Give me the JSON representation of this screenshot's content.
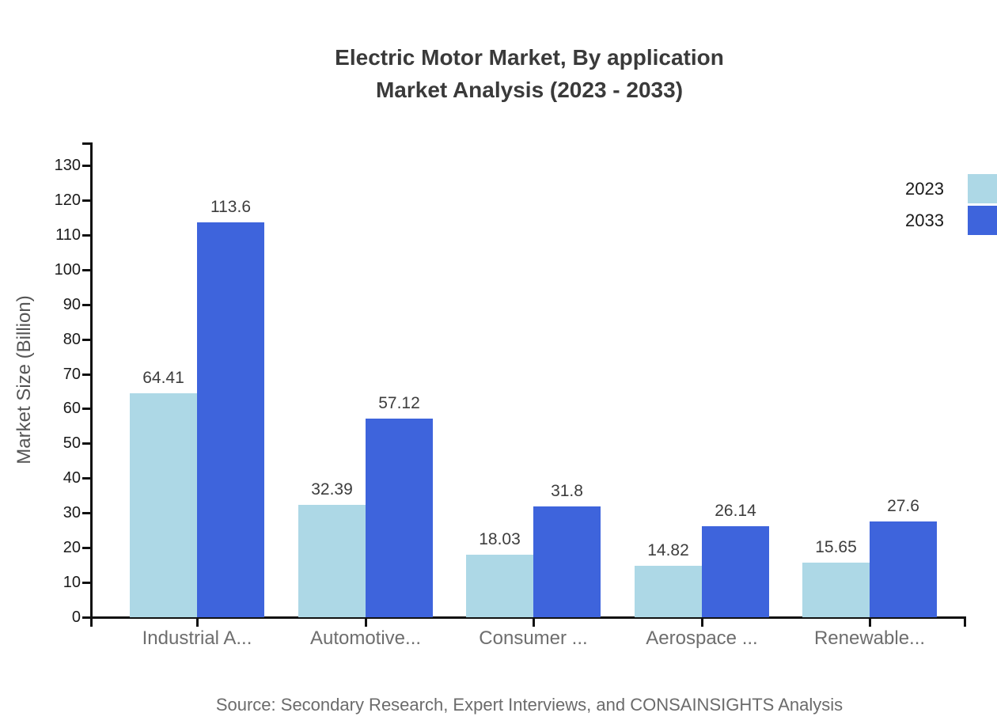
{
  "title": {
    "line1": "Electric Motor Market, By application",
    "line2": "Market Analysis (2023 - 2033)"
  },
  "source": "Source: Secondary Research, Expert Interviews, and CONSAINSIGHTS Analysis",
  "legend": {
    "items": [
      {
        "label": "2023",
        "color": "#ADD8E6"
      },
      {
        "label": "2033",
        "color": "#3E64DC"
      }
    ],
    "position": "top-right"
  },
  "chart_data": {
    "type": "bar",
    "title": "Electric Motor Market, By application Market Analysis (2023 - 2033)",
    "categories": [
      "Industrial A...",
      "Automotive...",
      "Consumer ...",
      "Aerospace ...",
      "Renewable..."
    ],
    "series": [
      {
        "name": "2023",
        "color": "#ADD8E6",
        "values": [
          64.41,
          32.39,
          18.03,
          14.82,
          15.65
        ]
      },
      {
        "name": "2033",
        "color": "#3E64DC",
        "values": [
          113.6,
          57.12,
          31.8,
          26.14,
          27.6
        ]
      }
    ],
    "value_labels": [
      [
        "64.41",
        "32.39",
        "18.03",
        "14.82",
        "15.65"
      ],
      [
        "113.6",
        "57.12",
        "31.8",
        "26.14",
        "27.6"
      ]
    ],
    "xlabel": "",
    "ylabel": "Market Size (Billion)",
    "ylim": [
      0,
      130
    ],
    "ytick_step": 10,
    "grid": false,
    "legend_position": "top-right",
    "colors": {
      "axis": "#111111",
      "tick_label": "#1a1a1a",
      "value_label": "#3d3d3d",
      "category_label": "#6e6e6e",
      "title": "#3a3a3a",
      "source": "#6b6b6b"
    }
  }
}
